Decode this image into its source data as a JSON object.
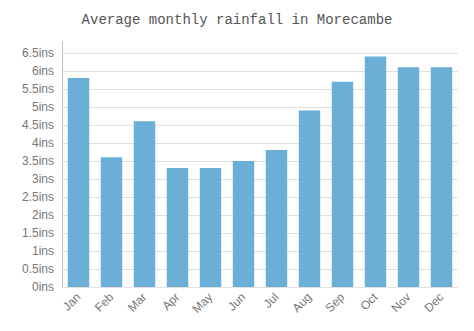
{
  "chart_data": {
    "type": "bar",
    "title": "Average monthly rainfall in Morecambe",
    "categories": [
      "Jan",
      "Feb",
      "Mar",
      "Apr",
      "May",
      "Jun",
      "Jul",
      "Aug",
      "Sep",
      "Oct",
      "Nov",
      "Dec"
    ],
    "values": [
      5.8,
      3.6,
      4.6,
      3.3,
      3.3,
      3.5,
      3.8,
      4.9,
      5.7,
      6.4,
      6.1,
      6.1
    ],
    "color": "#6baed6",
    "ylim": [
      0,
      6.8
    ],
    "yticks": [
      {
        "value": 0,
        "label": "0ins"
      },
      {
        "value": 0.5,
        "label": "0.5ins"
      },
      {
        "value": 1.0,
        "label": "1ins"
      },
      {
        "value": 1.5,
        "label": "1.5ins"
      },
      {
        "value": 2.0,
        "label": "2ins"
      },
      {
        "value": 2.5,
        "label": "2.5ins"
      },
      {
        "value": 3.0,
        "label": "3ins"
      },
      {
        "value": 3.5,
        "label": "3.5ins"
      },
      {
        "value": 4.0,
        "label": "4ins"
      },
      {
        "value": 4.5,
        "label": "4.5ins"
      },
      {
        "value": 5.0,
        "label": "5ins"
      },
      {
        "value": 5.5,
        "label": "5.5ins"
      },
      {
        "value": 6.0,
        "label": "6ins"
      },
      {
        "value": 6.5,
        "label": "6.5ins"
      }
    ],
    "grid": true
  }
}
